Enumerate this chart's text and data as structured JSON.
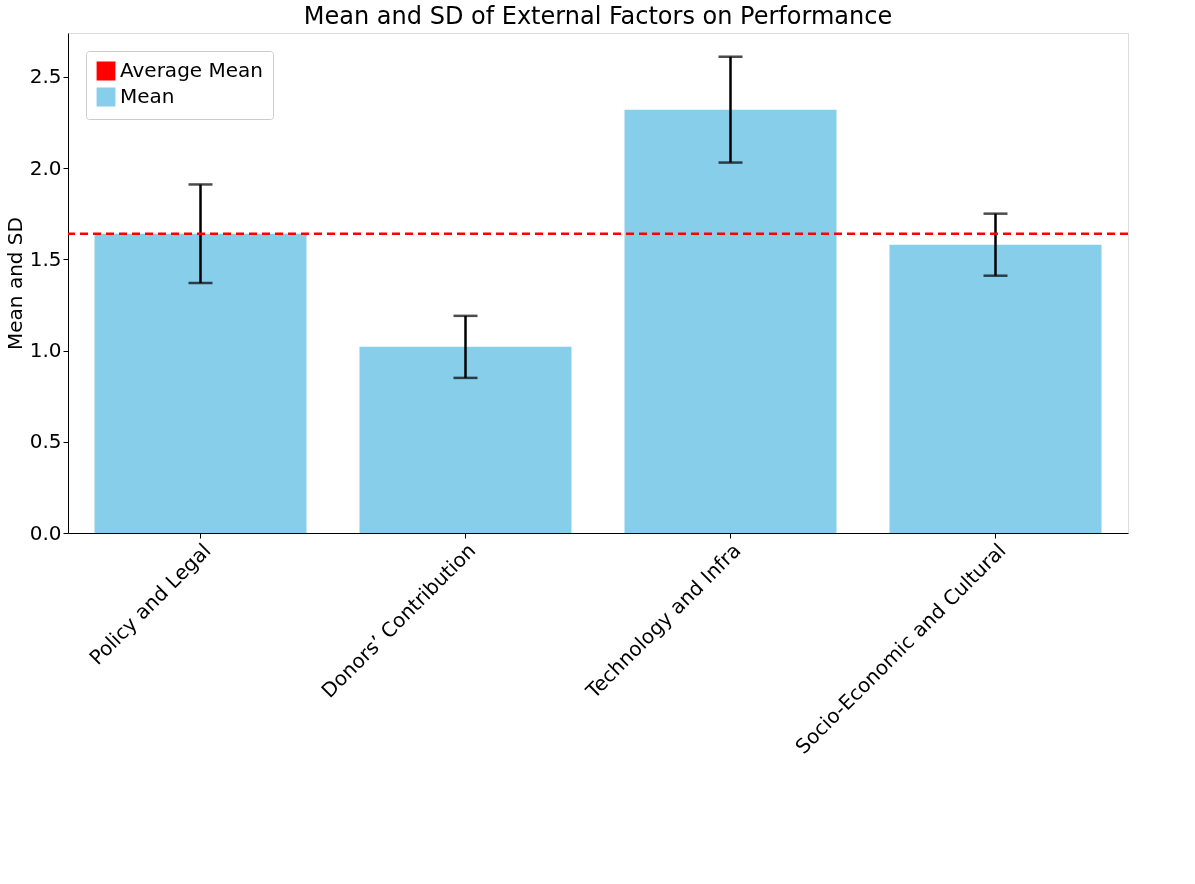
{
  "chart_data": {
    "type": "bar",
    "title": "Mean and SD of External Factors on Performance",
    "ylabel": "Mean and SD",
    "categories": [
      "Policy and Legal",
      "Donors’ Contribution",
      "Technology and Infra",
      "Socio-Economic and Cultural"
    ],
    "series": [
      {
        "name": "Mean",
        "color": "#87ceeb",
        "values": [
          1.64,
          1.02,
          2.32,
          1.58
        ],
        "errors": [
          0.27,
          0.17,
          0.29,
          0.17
        ]
      }
    ],
    "ref_lines": [
      {
        "axis": "y",
        "value": 1.64,
        "label": "Average Mean",
        "color": "#ff0000",
        "line_style": "dashed"
      }
    ],
    "ylim": [
      0,
      2.74
    ],
    "yticks": [
      {
        "value": 0,
        "label": "0.0"
      },
      0.5,
      {
        "value": 1,
        "label": "1.0"
      },
      1.5,
      {
        "value": 2,
        "label": "2.0"
      },
      2.5
    ],
    "grid": false,
    "legend": "top left"
  }
}
